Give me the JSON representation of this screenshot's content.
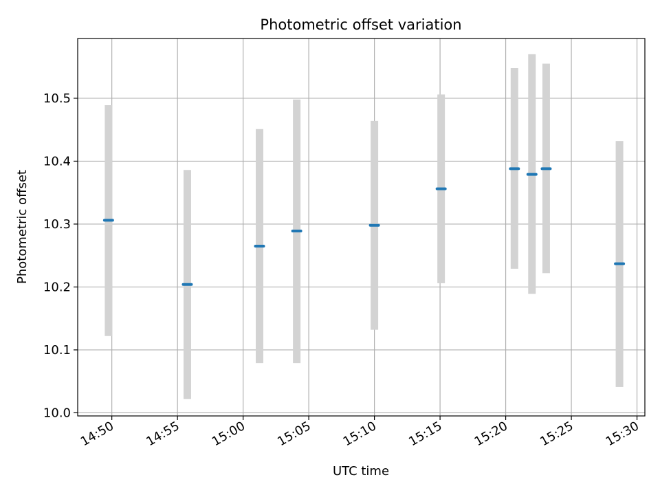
{
  "chart_data": {
    "type": "scatter",
    "title": "Photometric offset variation",
    "xlabel": "UTC time",
    "ylabel": "Photometric offset",
    "grid": true,
    "x_axis": {
      "kind": "time",
      "range": [
        "14:47:24",
        "15:30:36"
      ],
      "tick_labels": [
        "14:50",
        "14:55",
        "15:00",
        "15:05",
        "15:10",
        "15:15",
        "15:20",
        "15:25",
        "15:30"
      ]
    },
    "y_axis": {
      "range": [
        9.995,
        10.595
      ],
      "ticks": [
        10.0,
        10.1,
        10.2,
        10.3,
        10.4,
        10.5
      ],
      "tick_labels": [
        "10.0",
        "10.1",
        "10.2",
        "10.3",
        "10.4",
        "10.5"
      ]
    },
    "points": [
      {
        "x": "14:49:45",
        "y": 10.306,
        "err_low": 10.122,
        "err_high": 10.489
      },
      {
        "x": "14:55:45",
        "y": 10.204,
        "err_low": 10.022,
        "err_high": 10.386
      },
      {
        "x": "15:01:15",
        "y": 10.265,
        "err_low": 10.079,
        "err_high": 10.451
      },
      {
        "x": "15:04:05",
        "y": 10.289,
        "err_low": 10.079,
        "err_high": 10.498
      },
      {
        "x": "15:10:00",
        "y": 10.298,
        "err_low": 10.132,
        "err_high": 10.464
      },
      {
        "x": "15:15:05",
        "y": 10.356,
        "err_low": 10.206,
        "err_high": 10.506
      },
      {
        "x": "15:20:40",
        "y": 10.388,
        "err_low": 10.229,
        "err_high": 10.548
      },
      {
        "x": "15:22:00",
        "y": 10.379,
        "err_low": 10.189,
        "err_high": 10.57
      },
      {
        "x": "15:23:05",
        "y": 10.388,
        "err_low": 10.222,
        "err_high": 10.555
      },
      {
        "x": "15:28:40",
        "y": 10.237,
        "err_low": 10.041,
        "err_high": 10.432
      }
    ],
    "colors": {
      "marker": "#1f77b4",
      "errorbar": "#d3d3d3",
      "grid": "#b0b0b0",
      "axes": "#000000"
    }
  }
}
